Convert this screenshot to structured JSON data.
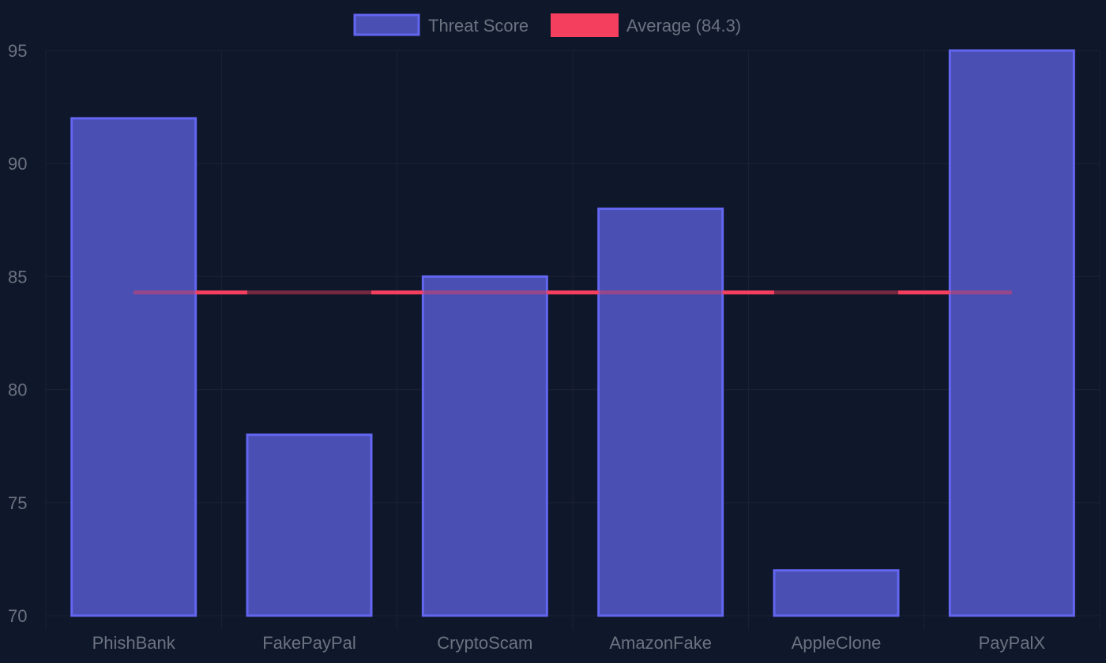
{
  "chart_data": {
    "type": "bar",
    "categories": [
      "PhishBank",
      "FakePayPal",
      "CryptoScam",
      "AmazonFake",
      "AppleClone",
      "PayPalX"
    ],
    "series": [
      {
        "name": "Threat Score",
        "values": [
          92,
          78,
          85,
          88,
          72,
          95
        ]
      }
    ],
    "average_line": {
      "name": "Average (84.3)",
      "value": 84.3
    },
    "ylim": [
      70,
      95
    ],
    "yticks": [
      70,
      75,
      80,
      85,
      90,
      95
    ],
    "grid": true,
    "legend_position": "top-center",
    "colors": {
      "background": "#0f172a",
      "bar_fill": "#4a4fb3",
      "bar_border": "#6366f1",
      "average_line": "#f43f5e",
      "grid": "#1a2233",
      "text": "#6b7280"
    }
  }
}
